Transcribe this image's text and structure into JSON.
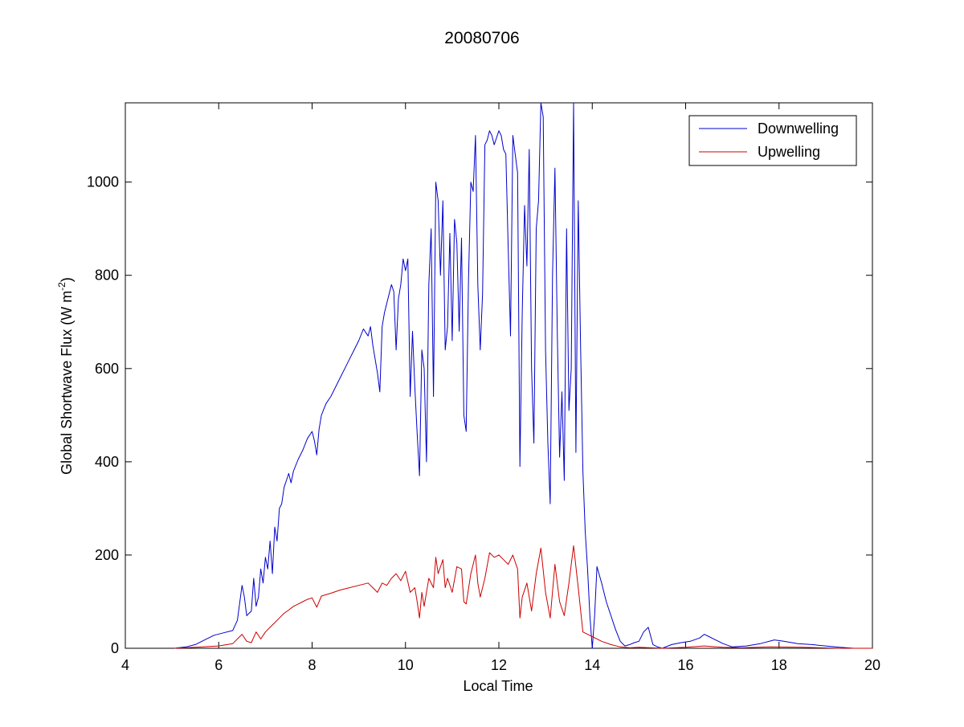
{
  "chart_data": {
    "type": "line",
    "title": "20080706",
    "xlabel": "Local Time",
    "ylabel": {
      "prefix": "Global Shortwave Flux (W m",
      "sup": "-2",
      "suffix": ")"
    },
    "xlim": [
      4,
      20
    ],
    "ylim": [
      0,
      1170
    ],
    "xticks": [
      4,
      6,
      8,
      10,
      12,
      14,
      16,
      18,
      20
    ],
    "yticks": [
      0,
      200,
      400,
      600,
      800,
      1000
    ],
    "grid": false,
    "legend_position": "top-right",
    "series": [
      {
        "name": "Downwelling",
        "color": "#0000cc",
        "points": [
          [
            5.05,
            0
          ],
          [
            5.3,
            3
          ],
          [
            5.5,
            8
          ],
          [
            5.7,
            18
          ],
          [
            5.9,
            28
          ],
          [
            6.1,
            33
          ],
          [
            6.3,
            38
          ],
          [
            6.4,
            60
          ],
          [
            6.5,
            135
          ],
          [
            6.55,
            110
          ],
          [
            6.6,
            70
          ],
          [
            6.7,
            80
          ],
          [
            6.75,
            150
          ],
          [
            6.8,
            90
          ],
          [
            6.85,
            110
          ],
          [
            6.9,
            170
          ],
          [
            6.95,
            140
          ],
          [
            7.0,
            195
          ],
          [
            7.05,
            170
          ],
          [
            7.1,
            230
          ],
          [
            7.15,
            160
          ],
          [
            7.2,
            260
          ],
          [
            7.25,
            230
          ],
          [
            7.3,
            300
          ],
          [
            7.35,
            310
          ],
          [
            7.4,
            345
          ],
          [
            7.45,
            360
          ],
          [
            7.5,
            375
          ],
          [
            7.55,
            355
          ],
          [
            7.6,
            380
          ],
          [
            7.7,
            405
          ],
          [
            7.8,
            425
          ],
          [
            7.9,
            450
          ],
          [
            8.0,
            465
          ],
          [
            8.05,
            445
          ],
          [
            8.1,
            415
          ],
          [
            8.15,
            470
          ],
          [
            8.2,
            500
          ],
          [
            8.3,
            525
          ],
          [
            8.4,
            540
          ],
          [
            8.5,
            560
          ],
          [
            8.6,
            580
          ],
          [
            8.7,
            600
          ],
          [
            8.8,
            620
          ],
          [
            8.9,
            640
          ],
          [
            9.0,
            660
          ],
          [
            9.1,
            685
          ],
          [
            9.2,
            670
          ],
          [
            9.25,
            690
          ],
          [
            9.3,
            650
          ],
          [
            9.35,
            620
          ],
          [
            9.4,
            590
          ],
          [
            9.45,
            550
          ],
          [
            9.5,
            690
          ],
          [
            9.55,
            720
          ],
          [
            9.6,
            740
          ],
          [
            9.65,
            760
          ],
          [
            9.7,
            780
          ],
          [
            9.75,
            765
          ],
          [
            9.8,
            640
          ],
          [
            9.85,
            750
          ],
          [
            9.9,
            780
          ],
          [
            9.95,
            835
          ],
          [
            10.0,
            810
          ],
          [
            10.05,
            835
          ],
          [
            10.1,
            540
          ],
          [
            10.15,
            680
          ],
          [
            10.2,
            560
          ],
          [
            10.25,
            460
          ],
          [
            10.3,
            370
          ],
          [
            10.35,
            640
          ],
          [
            10.4,
            600
          ],
          [
            10.45,
            400
          ],
          [
            10.5,
            780
          ],
          [
            10.55,
            900
          ],
          [
            10.6,
            540
          ],
          [
            10.65,
            1000
          ],
          [
            10.7,
            960
          ],
          [
            10.75,
            800
          ],
          [
            10.8,
            960
          ],
          [
            10.85,
            640
          ],
          [
            10.9,
            690
          ],
          [
            10.95,
            890
          ],
          [
            11.0,
            660
          ],
          [
            11.05,
            920
          ],
          [
            11.1,
            870
          ],
          [
            11.15,
            680
          ],
          [
            11.2,
            880
          ],
          [
            11.25,
            500
          ],
          [
            11.3,
            465
          ],
          [
            11.35,
            790
          ],
          [
            11.4,
            1000
          ],
          [
            11.45,
            980
          ],
          [
            11.5,
            1100
          ],
          [
            11.55,
            780
          ],
          [
            11.6,
            640
          ],
          [
            11.65,
            760
          ],
          [
            11.7,
            1080
          ],
          [
            11.75,
            1090
          ],
          [
            11.8,
            1110
          ],
          [
            11.85,
            1100
          ],
          [
            11.9,
            1080
          ],
          [
            11.95,
            1095
          ],
          [
            12.0,
            1110
          ],
          [
            12.05,
            1100
          ],
          [
            12.1,
            1070
          ],
          [
            12.15,
            1060
          ],
          [
            12.2,
            860
          ],
          [
            12.25,
            670
          ],
          [
            12.3,
            1100
          ],
          [
            12.35,
            1060
          ],
          [
            12.4,
            1020
          ],
          [
            12.45,
            390
          ],
          [
            12.5,
            720
          ],
          [
            12.55,
            950
          ],
          [
            12.6,
            820
          ],
          [
            12.65,
            1070
          ],
          [
            12.7,
            600
          ],
          [
            12.75,
            440
          ],
          [
            12.8,
            900
          ],
          [
            12.85,
            960
          ],
          [
            12.9,
            1170
          ],
          [
            12.95,
            1140
          ],
          [
            13.0,
            640
          ],
          [
            13.05,
            440
          ],
          [
            13.1,
            310
          ],
          [
            13.15,
            800
          ],
          [
            13.2,
            1030
          ],
          [
            13.25,
            680
          ],
          [
            13.3,
            410
          ],
          [
            13.35,
            550
          ],
          [
            13.4,
            360
          ],
          [
            13.45,
            900
          ],
          [
            13.5,
            510
          ],
          [
            13.55,
            600
          ],
          [
            13.6,
            1170
          ],
          [
            13.65,
            420
          ],
          [
            13.7,
            960
          ],
          [
            13.75,
            650
          ],
          [
            13.8,
            380
          ],
          [
            13.85,
            250
          ],
          [
            13.9,
            170
          ],
          [
            13.95,
            70
          ],
          [
            14.0,
            0
          ],
          [
            14.05,
            70
          ],
          [
            14.1,
            175
          ],
          [
            14.2,
            140
          ],
          [
            14.3,
            100
          ],
          [
            14.4,
            70
          ],
          [
            14.5,
            40
          ],
          [
            14.6,
            15
          ],
          [
            14.7,
            5
          ],
          [
            14.8,
            8
          ],
          [
            14.9,
            12
          ],
          [
            15.0,
            15
          ],
          [
            15.1,
            35
          ],
          [
            15.2,
            45
          ],
          [
            15.3,
            8
          ],
          [
            15.4,
            3
          ],
          [
            15.5,
            0
          ],
          [
            15.7,
            8
          ],
          [
            15.9,
            12
          ],
          [
            16.1,
            15
          ],
          [
            16.3,
            22
          ],
          [
            16.4,
            30
          ],
          [
            16.5,
            25
          ],
          [
            16.6,
            20
          ],
          [
            16.8,
            10
          ],
          [
            17.0,
            3
          ],
          [
            17.3,
            5
          ],
          [
            17.6,
            10
          ],
          [
            17.9,
            18
          ],
          [
            18.1,
            15
          ],
          [
            18.4,
            10
          ],
          [
            18.7,
            8
          ],
          [
            19.0,
            5
          ],
          [
            19.3,
            2
          ],
          [
            19.6,
            0
          ],
          [
            20.0,
            0
          ]
        ]
      },
      {
        "name": "Upwelling",
        "color": "#cc0000",
        "points": [
          [
            5.05,
            0
          ],
          [
            5.5,
            2
          ],
          [
            6.0,
            5
          ],
          [
            6.3,
            10
          ],
          [
            6.5,
            30
          ],
          [
            6.6,
            15
          ],
          [
            6.7,
            12
          ],
          [
            6.8,
            35
          ],
          [
            6.9,
            20
          ],
          [
            7.0,
            35
          ],
          [
            7.1,
            45
          ],
          [
            7.2,
            55
          ],
          [
            7.3,
            65
          ],
          [
            7.4,
            75
          ],
          [
            7.5,
            82
          ],
          [
            7.6,
            90
          ],
          [
            7.7,
            95
          ],
          [
            7.8,
            100
          ],
          [
            7.9,
            105
          ],
          [
            8.0,
            108
          ],
          [
            8.1,
            88
          ],
          [
            8.2,
            112
          ],
          [
            8.4,
            118
          ],
          [
            8.6,
            125
          ],
          [
            8.8,
            130
          ],
          [
            9.0,
            135
          ],
          [
            9.2,
            140
          ],
          [
            9.3,
            130
          ],
          [
            9.4,
            120
          ],
          [
            9.5,
            140
          ],
          [
            9.6,
            135
          ],
          [
            9.7,
            150
          ],
          [
            9.8,
            160
          ],
          [
            9.9,
            145
          ],
          [
            10.0,
            165
          ],
          [
            10.1,
            120
          ],
          [
            10.2,
            130
          ],
          [
            10.25,
            100
          ],
          [
            10.3,
            65
          ],
          [
            10.35,
            120
          ],
          [
            10.4,
            90
          ],
          [
            10.5,
            150
          ],
          [
            10.6,
            130
          ],
          [
            10.65,
            195
          ],
          [
            10.7,
            160
          ],
          [
            10.8,
            190
          ],
          [
            10.85,
            130
          ],
          [
            10.9,
            150
          ],
          [
            11.0,
            120
          ],
          [
            11.1,
            175
          ],
          [
            11.2,
            170
          ],
          [
            11.25,
            100
          ],
          [
            11.3,
            95
          ],
          [
            11.4,
            160
          ],
          [
            11.5,
            200
          ],
          [
            11.55,
            140
          ],
          [
            11.6,
            110
          ],
          [
            11.7,
            150
          ],
          [
            11.8,
            205
          ],
          [
            11.9,
            195
          ],
          [
            12.0,
            200
          ],
          [
            12.1,
            190
          ],
          [
            12.2,
            180
          ],
          [
            12.3,
            200
          ],
          [
            12.4,
            170
          ],
          [
            12.45,
            65
          ],
          [
            12.5,
            110
          ],
          [
            12.6,
            140
          ],
          [
            12.7,
            80
          ],
          [
            12.8,
            160
          ],
          [
            12.9,
            215
          ],
          [
            13.0,
            120
          ],
          [
            13.1,
            65
          ],
          [
            13.2,
            180
          ],
          [
            13.3,
            100
          ],
          [
            13.4,
            70
          ],
          [
            13.5,
            140
          ],
          [
            13.6,
            220
          ],
          [
            13.7,
            130
          ],
          [
            13.8,
            35
          ],
          [
            13.9,
            30
          ],
          [
            14.0,
            25
          ],
          [
            14.2,
            15
          ],
          [
            14.4,
            8
          ],
          [
            14.6,
            3
          ],
          [
            14.8,
            1
          ],
          [
            15.0,
            2
          ],
          [
            15.5,
            0
          ],
          [
            16.0,
            2
          ],
          [
            16.4,
            5
          ],
          [
            16.8,
            2
          ],
          [
            17.2,
            1
          ],
          [
            17.8,
            3
          ],
          [
            18.5,
            2
          ],
          [
            19.3,
            0
          ],
          [
            20.0,
            0
          ]
        ]
      }
    ]
  }
}
